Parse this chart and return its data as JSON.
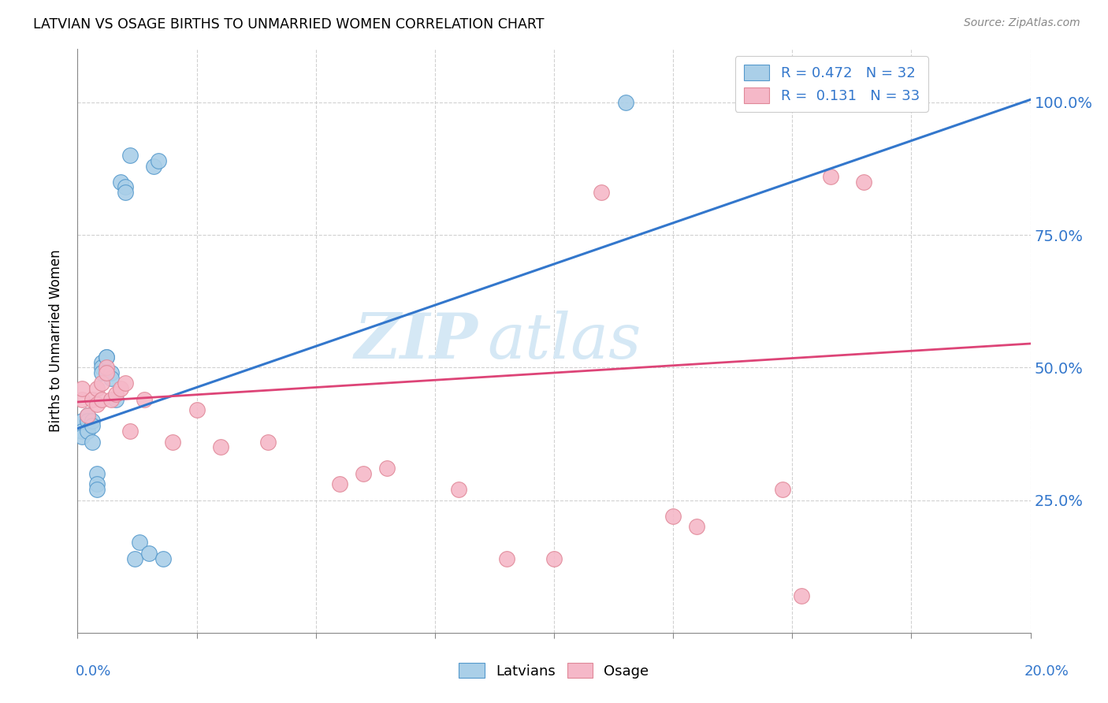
{
  "title": "LATVIAN VS OSAGE BIRTHS TO UNMARRIED WOMEN CORRELATION CHART",
  "source": "Source: ZipAtlas.com",
  "ylabel": "Births to Unmarried Women",
  "ytick_vals": [
    0.25,
    0.5,
    0.75,
    1.0
  ],
  "ytick_labels": [
    "25.0%",
    "50.0%",
    "75.0%",
    "100.0%"
  ],
  "xlim": [
    0.0,
    0.2
  ],
  "ylim": [
    0.0,
    1.1
  ],
  "legend_line1": "R = 0.472   N = 32",
  "legend_line2": "R =  0.131   N = 33",
  "color_latvian_fill": "#aacfe8",
  "color_latvian_edge": "#5599cc",
  "color_osage_fill": "#f5b8c8",
  "color_osage_edge": "#e08898",
  "color_line_latvian": "#3377cc",
  "color_line_osage": "#dd4477",
  "watermark_zip": "ZIP",
  "watermark_atlas": "atlas",
  "latvian_x": [
    0.001,
    0.001,
    0.001,
    0.002,
    0.002,
    0.002,
    0.003,
    0.003,
    0.003,
    0.004,
    0.004,
    0.004,
    0.005,
    0.005,
    0.005,
    0.006,
    0.006,
    0.007,
    0.007,
    0.008,
    0.009,
    0.01,
    0.01,
    0.011,
    0.012,
    0.013,
    0.015,
    0.016,
    0.017,
    0.018,
    0.115,
    0.155
  ],
  "latvian_y": [
    0.4,
    0.38,
    0.37,
    0.41,
    0.4,
    0.38,
    0.4,
    0.39,
    0.36,
    0.3,
    0.28,
    0.27,
    0.51,
    0.5,
    0.49,
    0.52,
    0.52,
    0.49,
    0.48,
    0.44,
    0.85,
    0.84,
    0.83,
    0.9,
    0.14,
    0.17,
    0.15,
    0.88,
    0.89,
    0.14,
    1.0,
    1.0
  ],
  "osage_x": [
    0.001,
    0.001,
    0.002,
    0.003,
    0.004,
    0.004,
    0.005,
    0.005,
    0.006,
    0.006,
    0.007,
    0.008,
    0.009,
    0.01,
    0.011,
    0.014,
    0.02,
    0.025,
    0.03,
    0.04,
    0.055,
    0.06,
    0.065,
    0.08,
    0.09,
    0.1,
    0.11,
    0.125,
    0.13,
    0.148,
    0.152,
    0.158,
    0.165
  ],
  "osage_y": [
    0.44,
    0.46,
    0.41,
    0.44,
    0.43,
    0.46,
    0.44,
    0.47,
    0.5,
    0.49,
    0.44,
    0.45,
    0.46,
    0.47,
    0.38,
    0.44,
    0.36,
    0.42,
    0.35,
    0.36,
    0.28,
    0.3,
    0.31,
    0.27,
    0.14,
    0.14,
    0.83,
    0.22,
    0.2,
    0.27,
    0.07,
    0.86,
    0.85
  ],
  "blue_line_x0": 0.0,
  "blue_line_y0": 0.385,
  "blue_line_x1": 0.2,
  "blue_line_y1": 1.005,
  "pink_line_x0": 0.0,
  "pink_line_y0": 0.435,
  "pink_line_x1": 0.2,
  "pink_line_y1": 0.545
}
